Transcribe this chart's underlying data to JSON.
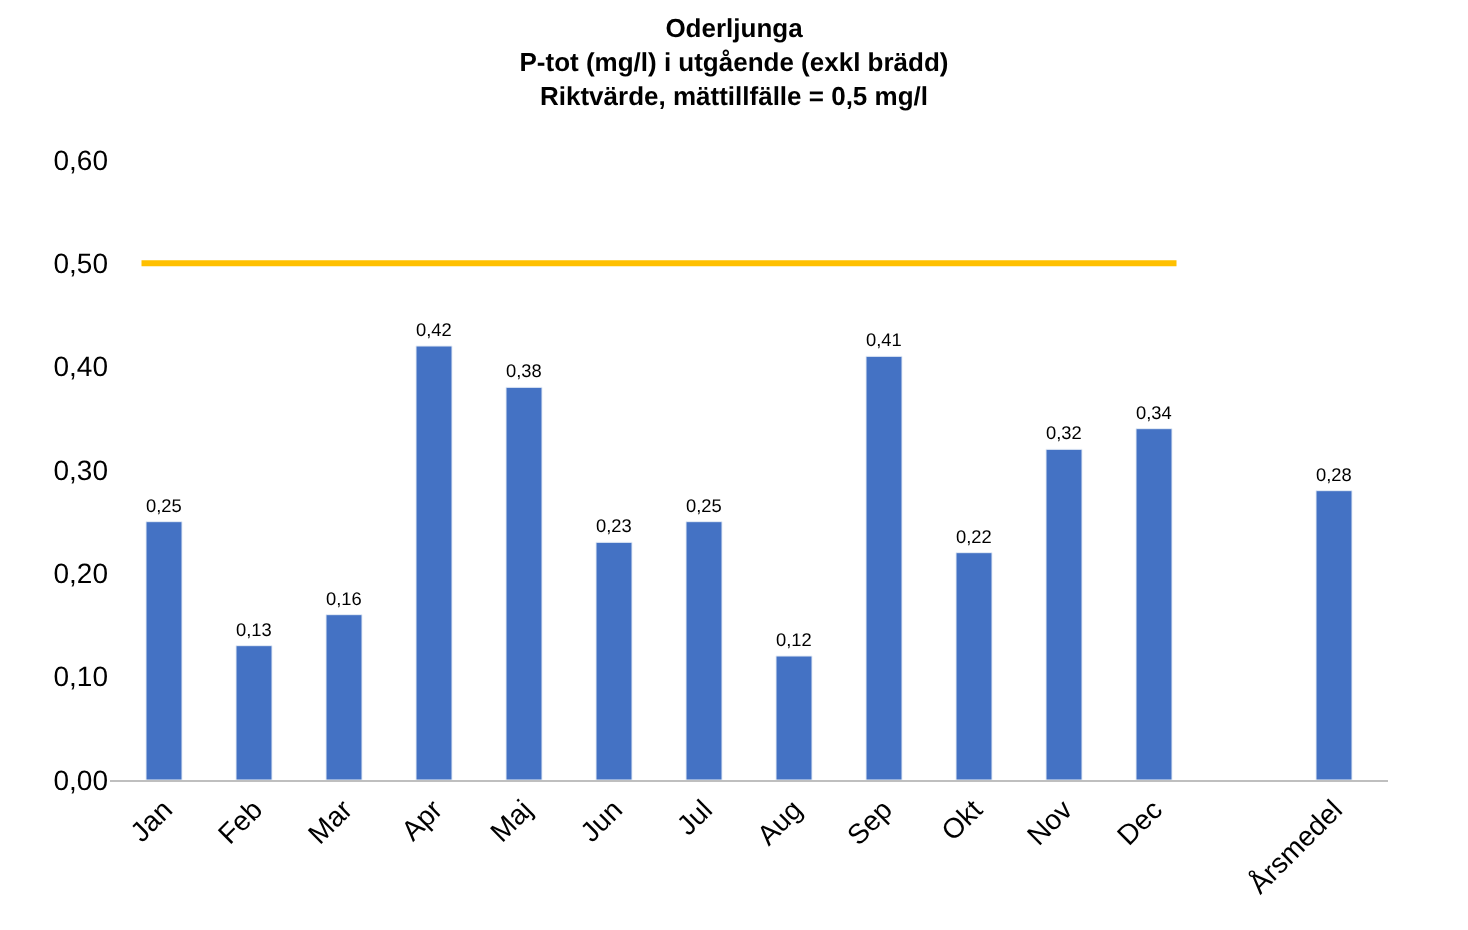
{
  "chart_data": {
    "type": "bar",
    "title": "Oderljunga\nP-tot (mg/l) i utgående (exkl brädd)\nRiktvärde, mättillfälle = 0,5 mg/l",
    "categories": [
      "Jan",
      "Feb",
      "Mar",
      "Apr",
      "Maj",
      "Jun",
      "Jul",
      "Aug",
      "Sep",
      "Okt",
      "Nov",
      "Dec",
      null,
      "Årsmedel"
    ],
    "values": [
      0.25,
      0.13,
      0.16,
      0.42,
      0.38,
      0.23,
      0.25,
      0.12,
      0.41,
      0.22,
      0.32,
      0.34,
      null,
      0.28
    ],
    "value_labels": [
      "0,25",
      "0,13",
      "0,16",
      "0,42",
      "0,38",
      "0,23",
      "0,25",
      "0,12",
      "0,41",
      "0,22",
      "0,32",
      "0,34",
      null,
      "0,28"
    ],
    "color": "#4472c4",
    "ylim": [
      0,
      0.6
    ],
    "yticks": [
      {
        "value": 0,
        "label": "0,00"
      },
      {
        "value": 0.1,
        "label": "0,10"
      },
      {
        "value": 0.2,
        "label": "0,20"
      },
      {
        "value": 0.3,
        "label": "0,30"
      },
      {
        "value": 0.4,
        "label": "0,40"
      },
      {
        "value": 0.5,
        "label": "0,50"
      },
      {
        "value": 0.6,
        "label": "0,60"
      }
    ],
    "ref_lines": [
      {
        "axis": "y",
        "value": 0.5,
        "color": "#ffc000"
      }
    ]
  }
}
